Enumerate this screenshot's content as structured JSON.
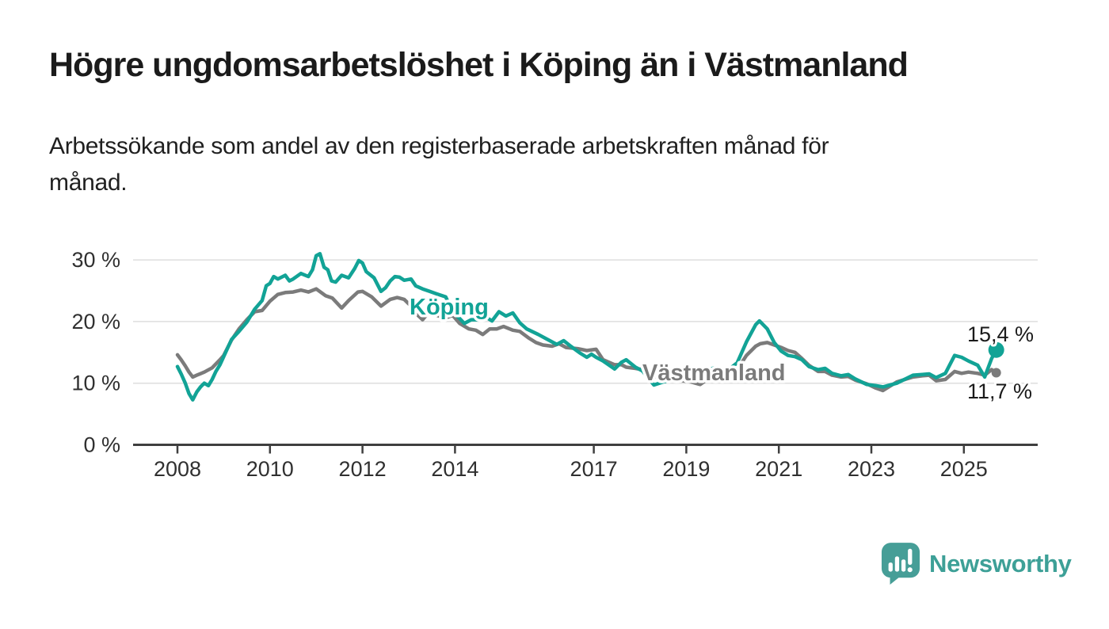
{
  "header": {
    "title": "Högre ungdomsarbetslöshet i Köping än i Västmanland",
    "subtitle_line1": "Arbetssökande som andel av den registerbaserade arbetskraften månad för",
    "subtitle_line2": "månad."
  },
  "branding": {
    "logo_text": "Newsworthy",
    "logo_icon": "bar-chart-speech-bubble",
    "logo_color": "#469e97",
    "logo_text_color": "#3da097"
  },
  "colors": {
    "koping_teal": "#12a396",
    "vastmanland_gray": "#7b7b7b",
    "axis": "#3f3f3f",
    "grid": "#dedede",
    "text": "#1b1b1b"
  },
  "chart_data": {
    "type": "line",
    "title": "Högre ungdomsarbetslöshet i Köping än i Västmanland",
    "subtitle": "Arbetssökande som andel av den registerbaserade arbetskraften månad för månad.",
    "unit": "%",
    "grid": true,
    "legend_position": "inline-labels-on-lines",
    "x_axis": {
      "ticks": [
        2008,
        2010,
        2012,
        2014,
        2017,
        2019,
        2021,
        2023,
        2025
      ],
      "tick_labels": [
        "2008",
        "2010",
        "2012",
        "2014",
        "2017",
        "2019",
        "2021",
        "2023",
        "2025"
      ],
      "range_years": [
        2007.05,
        2026.6
      ]
    },
    "y_axis": {
      "ticks": [
        0,
        10,
        20,
        30
      ],
      "tick_labels": [
        "0 %",
        "10 %",
        "20 %",
        "30 %"
      ],
      "range": [
        0,
        33
      ]
    },
    "series": [
      {
        "name": "Västmanland",
        "color": "#7b7b7b",
        "end_value": 11.7,
        "end_label": "11,7 %",
        "points": [
          [
            2008.0,
            14.6
          ],
          [
            2008.08,
            13.8
          ],
          [
            2008.17,
            12.8
          ],
          [
            2008.25,
            11.8
          ],
          [
            2008.33,
            11.0
          ],
          [
            2008.42,
            11.3
          ],
          [
            2008.58,
            11.8
          ],
          [
            2008.75,
            12.5
          ],
          [
            2008.92,
            13.8
          ],
          [
            2009.0,
            14.5
          ],
          [
            2009.17,
            17.0
          ],
          [
            2009.33,
            18.8
          ],
          [
            2009.5,
            20.3
          ],
          [
            2009.67,
            21.6
          ],
          [
            2009.83,
            21.8
          ],
          [
            2010.0,
            23.3
          ],
          [
            2010.17,
            24.4
          ],
          [
            2010.33,
            24.7
          ],
          [
            2010.5,
            24.8
          ],
          [
            2010.67,
            25.1
          ],
          [
            2010.83,
            24.8
          ],
          [
            2011.0,
            25.3
          ],
          [
            2011.2,
            24.2
          ],
          [
            2011.35,
            23.8
          ],
          [
            2011.55,
            22.2
          ],
          [
            2011.7,
            23.4
          ],
          [
            2011.9,
            24.8
          ],
          [
            2012.0,
            24.9
          ],
          [
            2012.2,
            24.0
          ],
          [
            2012.4,
            22.5
          ],
          [
            2012.6,
            23.6
          ],
          [
            2012.75,
            23.9
          ],
          [
            2012.9,
            23.6
          ],
          [
            2013.05,
            22.5
          ],
          [
            2013.2,
            21.0
          ],
          [
            2013.3,
            20.3
          ],
          [
            2013.4,
            21.2
          ],
          [
            2013.55,
            21.2
          ],
          [
            2013.65,
            20.9
          ],
          [
            2013.8,
            20.6
          ],
          [
            2013.95,
            21.0
          ],
          [
            2014.1,
            19.7
          ],
          [
            2014.3,
            18.8
          ],
          [
            2014.45,
            18.6
          ],
          [
            2014.6,
            17.9
          ],
          [
            2014.75,
            18.8
          ],
          [
            2014.9,
            18.8
          ],
          [
            2015.05,
            19.2
          ],
          [
            2015.25,
            18.6
          ],
          [
            2015.4,
            18.4
          ],
          [
            2015.6,
            17.3
          ],
          [
            2015.75,
            16.6
          ],
          [
            2015.9,
            16.2
          ],
          [
            2016.1,
            16.0
          ],
          [
            2016.25,
            16.4
          ],
          [
            2016.4,
            15.8
          ],
          [
            2016.65,
            15.6
          ],
          [
            2016.85,
            15.3
          ],
          [
            2017.05,
            15.5
          ],
          [
            2017.2,
            13.8
          ],
          [
            2017.45,
            13.0
          ],
          [
            2017.6,
            13.0
          ],
          [
            2017.7,
            12.6
          ],
          [
            2017.9,
            12.4
          ],
          [
            2018.05,
            12.2
          ],
          [
            2018.3,
            11.1
          ],
          [
            2018.5,
            10.9
          ],
          [
            2018.75,
            10.6
          ],
          [
            2019.1,
            10.2
          ],
          [
            2019.3,
            9.8
          ],
          [
            2019.45,
            10.6
          ],
          [
            2019.6,
            11.1
          ],
          [
            2019.8,
            11.3
          ],
          [
            2019.95,
            11.5
          ],
          [
            2020.1,
            12.2
          ],
          [
            2020.3,
            14.5
          ],
          [
            2020.5,
            16.0
          ],
          [
            2020.6,
            16.4
          ],
          [
            2020.75,
            16.6
          ],
          [
            2020.9,
            16.2
          ],
          [
            2021.05,
            15.8
          ],
          [
            2021.2,
            15.3
          ],
          [
            2021.35,
            15.0
          ],
          [
            2021.5,
            14.0
          ],
          [
            2021.65,
            12.9
          ],
          [
            2021.85,
            11.9
          ],
          [
            2022.0,
            11.9
          ],
          [
            2022.15,
            11.3
          ],
          [
            2022.35,
            11.0
          ],
          [
            2022.5,
            11.1
          ],
          [
            2022.65,
            10.5
          ],
          [
            2022.9,
            9.9
          ],
          [
            2023.1,
            9.2
          ],
          [
            2023.25,
            8.8
          ],
          [
            2023.55,
            10.2
          ],
          [
            2023.9,
            11.0
          ],
          [
            2024.1,
            11.2
          ],
          [
            2024.25,
            11.3
          ],
          [
            2024.4,
            10.4
          ],
          [
            2024.6,
            10.6
          ],
          [
            2024.8,
            11.9
          ],
          [
            2024.95,
            11.6
          ],
          [
            2025.1,
            11.8
          ],
          [
            2025.3,
            11.6
          ],
          [
            2025.45,
            11.3
          ],
          [
            2025.6,
            12.2
          ],
          [
            2025.7,
            11.7
          ]
        ]
      },
      {
        "name": "Köping",
        "color": "#12a396",
        "end_value": 15.4,
        "end_label": "15,4 %",
        "points": [
          [
            2008.0,
            12.7
          ],
          [
            2008.08,
            11.5
          ],
          [
            2008.17,
            10.0
          ],
          [
            2008.25,
            8.3
          ],
          [
            2008.33,
            7.3
          ],
          [
            2008.42,
            8.6
          ],
          [
            2008.5,
            9.4
          ],
          [
            2008.58,
            10.0
          ],
          [
            2008.67,
            9.6
          ],
          [
            2008.75,
            10.6
          ],
          [
            2008.83,
            11.9
          ],
          [
            2008.92,
            13.0
          ],
          [
            2009.0,
            14.3
          ],
          [
            2009.17,
            17.1
          ],
          [
            2009.33,
            18.4
          ],
          [
            2009.5,
            19.9
          ],
          [
            2009.67,
            22.0
          ],
          [
            2009.83,
            23.4
          ],
          [
            2009.92,
            25.8
          ],
          [
            2010.0,
            26.2
          ],
          [
            2010.08,
            27.3
          ],
          [
            2010.17,
            26.9
          ],
          [
            2010.33,
            27.5
          ],
          [
            2010.42,
            26.6
          ],
          [
            2010.5,
            26.9
          ],
          [
            2010.67,
            27.8
          ],
          [
            2010.83,
            27.3
          ],
          [
            2010.92,
            28.4
          ],
          [
            2011.0,
            30.7
          ],
          [
            2011.08,
            31.0
          ],
          [
            2011.17,
            28.8
          ],
          [
            2011.25,
            28.4
          ],
          [
            2011.33,
            26.6
          ],
          [
            2011.42,
            26.4
          ],
          [
            2011.55,
            27.5
          ],
          [
            2011.7,
            27.1
          ],
          [
            2011.83,
            28.6
          ],
          [
            2011.92,
            29.9
          ],
          [
            2012.0,
            29.5
          ],
          [
            2012.08,
            28.1
          ],
          [
            2012.25,
            27.1
          ],
          [
            2012.4,
            24.9
          ],
          [
            2012.5,
            25.5
          ],
          [
            2012.6,
            26.6
          ],
          [
            2012.7,
            27.3
          ],
          [
            2012.8,
            27.2
          ],
          [
            2012.9,
            26.7
          ],
          [
            2013.05,
            26.9
          ],
          [
            2013.15,
            25.8
          ],
          [
            2013.3,
            25.3
          ],
          [
            2013.45,
            24.9
          ],
          [
            2013.6,
            24.5
          ],
          [
            2013.8,
            24.0
          ],
          [
            2013.95,
            21.5
          ],
          [
            2014.1,
            20.5
          ],
          [
            2014.2,
            19.7
          ],
          [
            2014.35,
            20.3
          ],
          [
            2014.5,
            20.3
          ],
          [
            2014.65,
            20.8
          ],
          [
            2014.8,
            20.1
          ],
          [
            2014.95,
            21.6
          ],
          [
            2015.1,
            20.9
          ],
          [
            2015.25,
            21.4
          ],
          [
            2015.4,
            19.8
          ],
          [
            2015.55,
            18.8
          ],
          [
            2015.8,
            17.9
          ],
          [
            2016.0,
            17.1
          ],
          [
            2016.2,
            16.3
          ],
          [
            2016.35,
            16.9
          ],
          [
            2016.5,
            16.0
          ],
          [
            2016.7,
            14.9
          ],
          [
            2016.85,
            14.2
          ],
          [
            2016.95,
            14.7
          ],
          [
            2017.05,
            14.2
          ],
          [
            2017.2,
            13.6
          ],
          [
            2017.45,
            12.3
          ],
          [
            2017.6,
            13.4
          ],
          [
            2017.7,
            13.8
          ],
          [
            2017.9,
            12.6
          ],
          [
            2018.05,
            12.0
          ],
          [
            2018.3,
            9.7
          ],
          [
            2018.5,
            10.2
          ],
          [
            2018.75,
            10.6
          ],
          [
            2019.1,
            10.8
          ],
          [
            2019.3,
            11.0
          ],
          [
            2019.45,
            12.0
          ],
          [
            2019.6,
            12.5
          ],
          [
            2019.8,
            12.2
          ],
          [
            2019.95,
            12.4
          ],
          [
            2020.1,
            13.3
          ],
          [
            2020.3,
            16.7
          ],
          [
            2020.5,
            19.5
          ],
          [
            2020.58,
            20.1
          ],
          [
            2020.75,
            18.8
          ],
          [
            2020.9,
            16.6
          ],
          [
            2021.05,
            15.2
          ],
          [
            2021.2,
            14.5
          ],
          [
            2021.35,
            14.3
          ],
          [
            2021.5,
            13.8
          ],
          [
            2021.65,
            12.7
          ],
          [
            2021.85,
            12.2
          ],
          [
            2022.0,
            12.4
          ],
          [
            2022.15,
            11.6
          ],
          [
            2022.35,
            11.2
          ],
          [
            2022.5,
            11.4
          ],
          [
            2022.65,
            10.7
          ],
          [
            2022.9,
            9.8
          ],
          [
            2023.1,
            9.6
          ],
          [
            2023.25,
            9.4
          ],
          [
            2023.55,
            10.0
          ],
          [
            2023.9,
            11.3
          ],
          [
            2024.1,
            11.4
          ],
          [
            2024.25,
            11.5
          ],
          [
            2024.4,
            10.9
          ],
          [
            2024.6,
            11.6
          ],
          [
            2024.8,
            14.5
          ],
          [
            2024.95,
            14.2
          ],
          [
            2025.1,
            13.6
          ],
          [
            2025.3,
            12.9
          ],
          [
            2025.45,
            11.0
          ],
          [
            2025.6,
            14.0
          ],
          [
            2025.7,
            15.4
          ]
        ]
      }
    ]
  }
}
